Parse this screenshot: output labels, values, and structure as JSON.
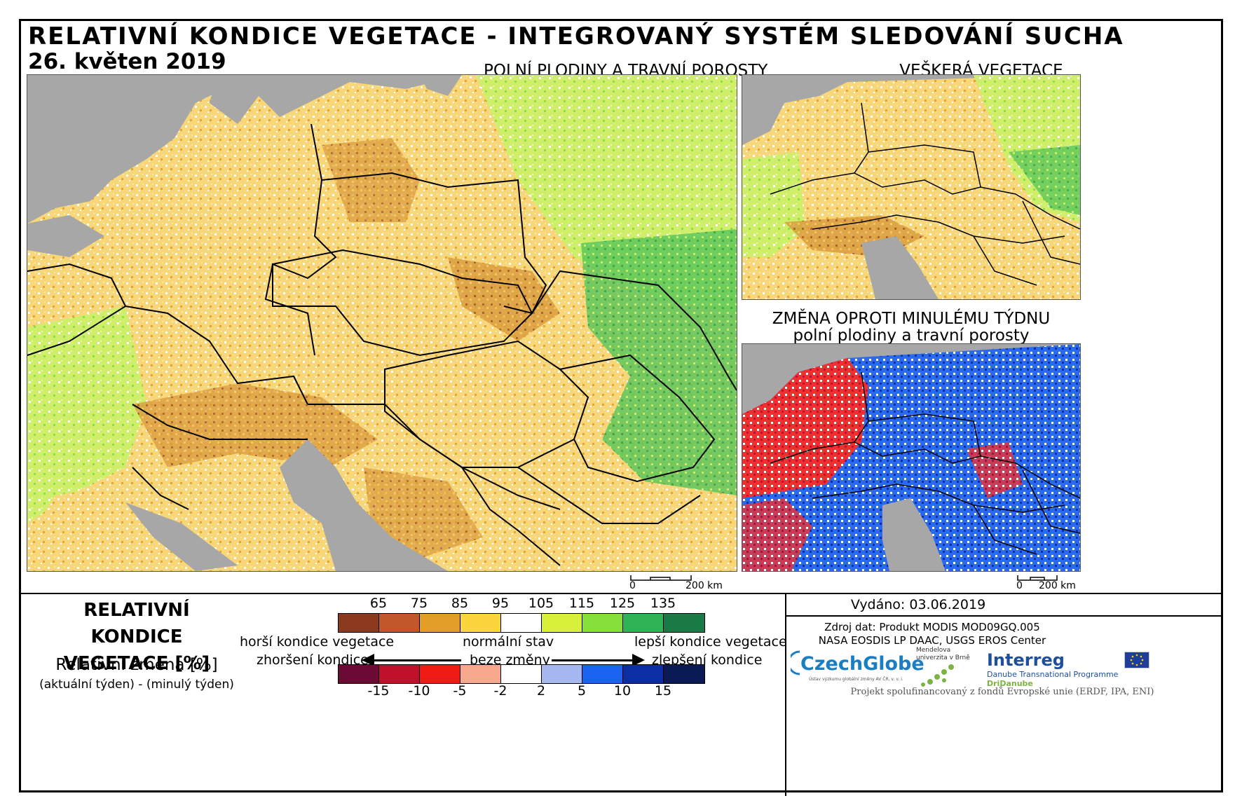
{
  "title": "RELATIVNÍ KONDICE VEGETACE - INTEGROVANÝ SYSTÉM SLEDOVÁNÍ SUCHA",
  "date": "26. květen 2019",
  "maps": {
    "main_title": "POLNÍ PLODINY A TRAVNÍ POROSTY",
    "all_vegetation_title": "VEŠKERÁ VEGETACE",
    "change_title_line1": "ZMĚNA OPROTI MINULÉMU TÝDNU",
    "change_title_line2": "polní plodiny a travní porosty"
  },
  "scalebars": {
    "main": {
      "zero": "0",
      "distance": "200 km"
    },
    "small": {
      "zero": "0",
      "distance": "200 km"
    }
  },
  "legend": {
    "title_line1": "RELATIVNÍ KONDICE",
    "title_line2": "VEGETACE [%]",
    "change_label": "Relativní změna [%]",
    "change_formula": "(aktuální týden) - (minulý týden)",
    "condition_ticks": [
      "65",
      "75",
      "85",
      "95",
      "105",
      "115",
      "125",
      "135"
    ],
    "condition_colors": [
      "#8b3a1f",
      "#c2582a",
      "#e39e27",
      "#fbd53c",
      "#ffffff",
      "#d9f03a",
      "#86e03b",
      "#30b356",
      "#1a7a45"
    ],
    "change_ticks": [
      "-15",
      "-10",
      "-5",
      "-2",
      "2",
      "5",
      "10",
      "15"
    ],
    "change_colors": [
      "#6a0a35",
      "#c0102c",
      "#f01a14",
      "#f7a88c",
      "#ffffff",
      "#a5b8f0",
      "#1a63f0",
      "#0b2ea3",
      "#0a1a55"
    ],
    "worse_condition": "horší kondice vegetace",
    "normal_state": "normální stav",
    "better_condition": "lepší kondice vegetace",
    "deterioration": "zhoršení kondice",
    "no_change": "beze změny",
    "improvement": "zlepšení kondice"
  },
  "info": {
    "issued": "Vydáno: 03.06.2019",
    "source_line1": "Zdroj dat: Produkt MODIS MOD09GQ.005",
    "source_line2": "NASA EOSDIS LP DAAC, USGS EROS Center",
    "logo_czechglobe": "CzechGlobe",
    "logo_czechglobe_sub": "Ústav výzkumu globální změny AV ČR, v. v. i.",
    "logo_mendel": "Mendelova univerzita v Brně",
    "logo_interreg": "Interreg",
    "logo_interreg_sub": "Danube Transnational Programme",
    "logo_dri": "DriDanube",
    "footer": "Projekt spolufinancovaný z fondů Evropské unie (ERDF, IPA, ENI)"
  }
}
